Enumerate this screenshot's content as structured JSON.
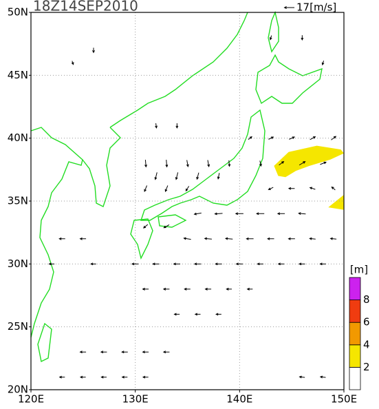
{
  "map": {
    "title": "18Z14SEP2010",
    "reference_vector": {
      "value": 17,
      "label": "17[m/s]"
    },
    "xlim": [
      120,
      150
    ],
    "ylim": [
      20,
      50
    ],
    "xticks": [
      {
        "value": 120,
        "label": "120E"
      },
      {
        "value": 130,
        "label": "130E"
      },
      {
        "value": 140,
        "label": "140E"
      },
      {
        "value": 150,
        "label": "150E"
      }
    ],
    "yticks": [
      {
        "value": 20,
        "label": "20N"
      },
      {
        "value": 25,
        "label": "25N"
      },
      {
        "value": 30,
        "label": "30N"
      },
      {
        "value": 35,
        "label": "35N"
      },
      {
        "value": 40,
        "label": "40N"
      },
      {
        "value": 45,
        "label": "45N"
      },
      {
        "value": 50,
        "label": "50N"
      }
    ],
    "grid": true,
    "colorbar": {
      "unit": "[m]",
      "levels": [
        2,
        4,
        6,
        8
      ],
      "colors": [
        "#ffffff",
        "#f5e600",
        "#f29900",
        "#f03c10",
        "#cc22ee"
      ]
    },
    "wave_regions": [
      {
        "min_height": 2,
        "polygon": [
          [
            143.3,
            37.8
          ],
          [
            144.7,
            38.9
          ],
          [
            147.4,
            39.4
          ],
          [
            149.7,
            39.1
          ],
          [
            150,
            38.8
          ],
          [
            148.7,
            38.3
          ],
          [
            146.7,
            37.8
          ],
          [
            145.4,
            37.4
          ],
          [
            144.4,
            36.9
          ],
          [
            143.7,
            37.0
          ]
        ]
      },
      {
        "min_height": 2,
        "polygon": [
          [
            148.5,
            34.5
          ],
          [
            150,
            35.5
          ],
          [
            150,
            34.3
          ]
        ]
      }
    ],
    "vectors": [
      [
        131,
        38,
        1,
        -12
      ],
      [
        133,
        38,
        1,
        -12
      ],
      [
        135,
        38,
        2,
        -11
      ],
      [
        137,
        38,
        2,
        -11
      ],
      [
        139,
        38,
        1,
        -10
      ],
      [
        132,
        37,
        -3,
        -12
      ],
      [
        134,
        37,
        -3,
        -12
      ],
      [
        136,
        37,
        -3,
        -11
      ],
      [
        138,
        37,
        -2,
        -10
      ],
      [
        131,
        36,
        -4,
        -10
      ],
      [
        133,
        36,
        -4,
        -10
      ],
      [
        135,
        36,
        -5,
        -8
      ],
      [
        141,
        40,
        6,
        5
      ],
      [
        143,
        40,
        8,
        4
      ],
      [
        145,
        40,
        9,
        4
      ],
      [
        147,
        40,
        9,
        5
      ],
      [
        149,
        40,
        8,
        6
      ],
      [
        142,
        38,
        2,
        -9
      ],
      [
        144,
        38,
        8,
        6
      ],
      [
        146,
        38,
        10,
        6
      ],
      [
        148,
        38,
        10,
        4
      ],
      [
        143,
        36,
        -8,
        -4
      ],
      [
        145,
        36,
        -10,
        0
      ],
      [
        147,
        36,
        -9,
        3
      ],
      [
        149,
        36,
        -6,
        5
      ],
      [
        136,
        34,
        -12,
        -2
      ],
      [
        138,
        34,
        -13,
        -1
      ],
      [
        140,
        34,
        -13,
        0
      ],
      [
        142,
        34,
        -13,
        0
      ],
      [
        144,
        34,
        -12,
        0
      ],
      [
        146,
        34,
        -12,
        1
      ],
      [
        131,
        33,
        -7,
        -6
      ],
      [
        133,
        33,
        -9,
        -5
      ],
      [
        135,
        32,
        -12,
        2
      ],
      [
        137,
        32,
        -12,
        1
      ],
      [
        139,
        32,
        -12,
        1
      ],
      [
        141,
        32,
        -12,
        0
      ],
      [
        143,
        32,
        -11,
        0
      ],
      [
        145,
        32,
        -11,
        0
      ],
      [
        147,
        32,
        -10,
        1
      ],
      [
        149,
        32,
        -10,
        1
      ],
      [
        123,
        32,
        -10,
        0
      ],
      [
        125,
        32,
        -10,
        0
      ],
      [
        122,
        30,
        -9,
        0
      ],
      [
        126,
        30,
        -9,
        0
      ],
      [
        130,
        30,
        -11,
        0
      ],
      [
        132,
        30,
        -11,
        0
      ],
      [
        134,
        30,
        -11,
        0
      ],
      [
        136,
        30,
        -11,
        0
      ],
      [
        138,
        30,
        -11,
        0
      ],
      [
        140,
        30,
        -11,
        0
      ],
      [
        142,
        30,
        -10,
        0
      ],
      [
        144,
        30,
        -10,
        0
      ],
      [
        146,
        30,
        -10,
        0
      ],
      [
        148,
        30,
        -10,
        0
      ],
      [
        131,
        28,
        -10,
        0
      ],
      [
        133,
        28,
        -10,
        0
      ],
      [
        135,
        28,
        -10,
        0
      ],
      [
        137,
        28,
        -10,
        0
      ],
      [
        139,
        28,
        -9,
        0
      ],
      [
        141,
        28,
        -9,
        0
      ],
      [
        134,
        26,
        -9,
        0
      ],
      [
        136,
        26,
        -9,
        0
      ],
      [
        138,
        26,
        -9,
        0
      ],
      [
        125,
        23,
        -10,
        0
      ],
      [
        127,
        23,
        -10,
        0
      ],
      [
        129,
        23,
        -10,
        0
      ],
      [
        131,
        23,
        -10,
        0
      ],
      [
        133,
        23,
        -10,
        0
      ],
      [
        123,
        21,
        -9,
        0
      ],
      [
        125,
        21,
        -9,
        0
      ],
      [
        127,
        21,
        -9,
        0
      ],
      [
        129,
        21,
        -9,
        0
      ],
      [
        131,
        21,
        -9,
        0
      ],
      [
        146,
        21,
        -9,
        1
      ],
      [
        148,
        21,
        -9,
        1
      ],
      [
        126,
        47,
        0,
        -8
      ],
      [
        124,
        46,
        2,
        -6
      ],
      [
        132,
        41,
        1,
        -8
      ],
      [
        134,
        41,
        0,
        -8
      ],
      [
        146,
        48,
        0,
        -8
      ],
      [
        148,
        46,
        -2,
        -7
      ],
      [
        143,
        48,
        -2,
        -7
      ]
    ]
  }
}
